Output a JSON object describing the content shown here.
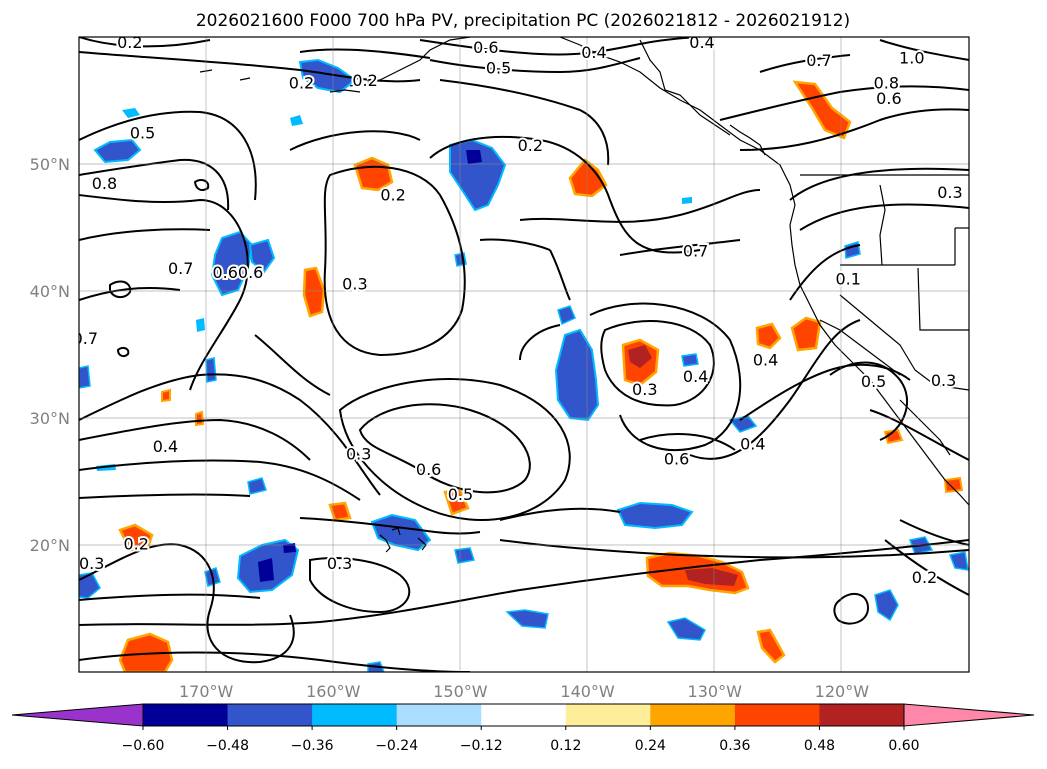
{
  "title": "2026021600 F000 700 hPa PV, precipitation PC (2026021812 - 2026021912)",
  "map": {
    "lon_range": [
      -180,
      -110
    ],
    "lat_range": [
      10,
      60
    ],
    "lon_ticks": [
      {
        "lon": -170,
        "label": "170°W"
      },
      {
        "lon": -160,
        "label": "160°W"
      },
      {
        "lon": -150,
        "label": "150°W"
      },
      {
        "lon": -140,
        "label": "140°W"
      },
      {
        "lon": -130,
        "label": "130°W"
      },
      {
        "lon": -120,
        "label": "120°W"
      }
    ],
    "lat_ticks": [
      {
        "lat": 50,
        "label": "50°N"
      },
      {
        "lat": 40,
        "label": "40°N"
      },
      {
        "lat": 30,
        "label": "30°N"
      },
      {
        "lat": 20,
        "label": "20°N"
      }
    ],
    "contour_labels": [
      {
        "text": "0.2",
        "lon": -176.0,
        "lat": 59.6
      },
      {
        "text": "0.6",
        "lon": -148.0,
        "lat": 59.2
      },
      {
        "text": "0.5",
        "lon": -147.0,
        "lat": 57.6
      },
      {
        "text": "0.4",
        "lon": -139.5,
        "lat": 58.8
      },
      {
        "text": "0.4",
        "lon": -131.0,
        "lat": 59.6
      },
      {
        "text": "0.7",
        "lon": -121.8,
        "lat": 58.2
      },
      {
        "text": "1.0",
        "lon": -114.5,
        "lat": 58.4
      },
      {
        "text": "0.8",
        "lon": -116.5,
        "lat": 56.4
      },
      {
        "text": "0.6",
        "lon": -116.3,
        "lat": 55.2
      },
      {
        "text": "0.2",
        "lon": -162.5,
        "lat": 56.4
      },
      {
        "text": "0.2",
        "lon": -157.5,
        "lat": 56.6
      },
      {
        "text": "0.5",
        "lon": -175.0,
        "lat": 52.5
      },
      {
        "text": "0.2",
        "lon": -144.5,
        "lat": 51.5
      },
      {
        "text": "0.8",
        "lon": -178.0,
        "lat": 48.5
      },
      {
        "text": "0.2",
        "lon": -155.3,
        "lat": 47.6
      },
      {
        "text": "0.3",
        "lon": -111.5,
        "lat": 47.8
      },
      {
        "text": "0.7",
        "lon": -172.0,
        "lat": 41.8
      },
      {
        "text": "0.6",
        "lon": -168.5,
        "lat": 41.5
      },
      {
        "text": "0.6",
        "lon": -166.5,
        "lat": 41.5
      },
      {
        "text": "0.7",
        "lon": -131.5,
        "lat": 43.2
      },
      {
        "text": "0.3",
        "lon": -158.3,
        "lat": 40.6
      },
      {
        "text": "0.1",
        "lon": -119.5,
        "lat": 41.0
      },
      {
        "text": "0.7",
        "lon": -179.5,
        "lat": 36.3
      },
      {
        "text": "0.4",
        "lon": -126.0,
        "lat": 34.6
      },
      {
        "text": "0.3",
        "lon": -135.5,
        "lat": 32.3
      },
      {
        "text": "0.4",
        "lon": -131.5,
        "lat": 33.3
      },
      {
        "text": "0.5",
        "lon": -117.5,
        "lat": 32.9
      },
      {
        "text": "0.3",
        "lon": -112.0,
        "lat": 33.0
      },
      {
        "text": "0.4",
        "lon": -173.2,
        "lat": 27.8
      },
      {
        "text": "0.4",
        "lon": -127.0,
        "lat": 28.0
      },
      {
        "text": "0.3",
        "lon": -158.0,
        "lat": 27.2
      },
      {
        "text": "0.6",
        "lon": -152.5,
        "lat": 26.0
      },
      {
        "text": "0.6",
        "lon": -133.0,
        "lat": 26.8
      },
      {
        "text": "0.5",
        "lon": -150.0,
        "lat": 24.0
      },
      {
        "text": "0.2",
        "lon": -175.5,
        "lat": 20.1
      },
      {
        "text": "0.3",
        "lon": -179.0,
        "lat": 18.6
      },
      {
        "text": "0.3",
        "lon": -159.5,
        "lat": 18.6
      },
      {
        "text": "0.2",
        "lon": -113.5,
        "lat": 17.5
      }
    ]
  },
  "colorbar": {
    "ticks": [
      "−0.60",
      "−0.48",
      "−0.36",
      "−0.24",
      "−0.12",
      "0.12",
      "0.24",
      "0.36",
      "0.48",
      "0.60"
    ],
    "colors": [
      "#9933cc",
      "#000099",
      "#3355cc",
      "#00bbff",
      "#aaddff",
      "#ffffff",
      "#ffee99",
      "#ffa500",
      "#ff4400",
      "#b22222",
      "#ff88aa"
    ]
  }
}
